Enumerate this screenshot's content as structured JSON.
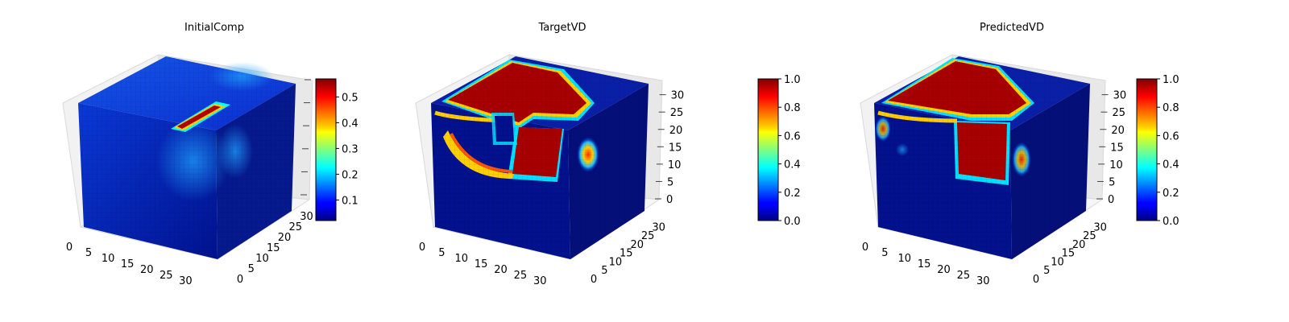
{
  "chart_data": [
    {
      "type": "3d-voxel",
      "title": "InitialComp",
      "x_ticks": [
        "0",
        "5",
        "10",
        "15",
        "20",
        "25",
        "30"
      ],
      "y_ticks": [
        "0",
        "5",
        "10",
        "15",
        "20",
        "25",
        "30"
      ],
      "z_ticks": [],
      "xlim": [
        0,
        32
      ],
      "ylim": [
        0,
        32
      ],
      "zlim": [
        0,
        32
      ],
      "colormap": "jet",
      "colorbar": {
        "min": 0.02,
        "max": 0.57,
        "ticks": [
          "0.1",
          "0.2",
          "0.3",
          "0.4",
          "0.5"
        ],
        "tick_values": [
          0.1,
          0.2,
          0.3,
          0.4,
          0.5
        ]
      },
      "grid": true
    },
    {
      "type": "3d-voxel",
      "title": "TargetVD",
      "x_ticks": [
        "0",
        "5",
        "10",
        "15",
        "20",
        "25",
        "30"
      ],
      "y_ticks": [
        "0",
        "5",
        "10",
        "15",
        "20",
        "25",
        "30"
      ],
      "z_ticks": [
        "0",
        "5",
        "10",
        "15",
        "20",
        "25",
        "30"
      ],
      "xlim": [
        0,
        32
      ],
      "ylim": [
        0,
        32
      ],
      "zlim": [
        0,
        32
      ],
      "colormap": "jet",
      "colorbar": {
        "min": 0.0,
        "max": 1.0,
        "ticks": [
          "0.0",
          "0.2",
          "0.4",
          "0.6",
          "0.8",
          "1.0"
        ],
        "tick_values": [
          0.0,
          0.2,
          0.4,
          0.6,
          0.8,
          1.0
        ]
      },
      "grid": true
    },
    {
      "type": "3d-voxel",
      "title": "PredictedVD",
      "x_ticks": [
        "0",
        "5",
        "10",
        "15",
        "20",
        "25",
        "30"
      ],
      "y_ticks": [
        "0",
        "5",
        "10",
        "15",
        "20",
        "25",
        "30"
      ],
      "z_ticks": [
        "0",
        "5",
        "10",
        "15",
        "20",
        "25",
        "30"
      ],
      "xlim": [
        0,
        32
      ],
      "ylim": [
        0,
        32
      ],
      "zlim": [
        0,
        32
      ],
      "colormap": "jet",
      "colorbar": {
        "min": 0.0,
        "max": 1.0,
        "ticks": [
          "0.0",
          "0.2",
          "0.4",
          "0.6",
          "0.8",
          "1.0"
        ],
        "tick_values": [
          0.0,
          0.2,
          0.4,
          0.6,
          0.8,
          1.0
        ]
      },
      "grid": true
    }
  ]
}
